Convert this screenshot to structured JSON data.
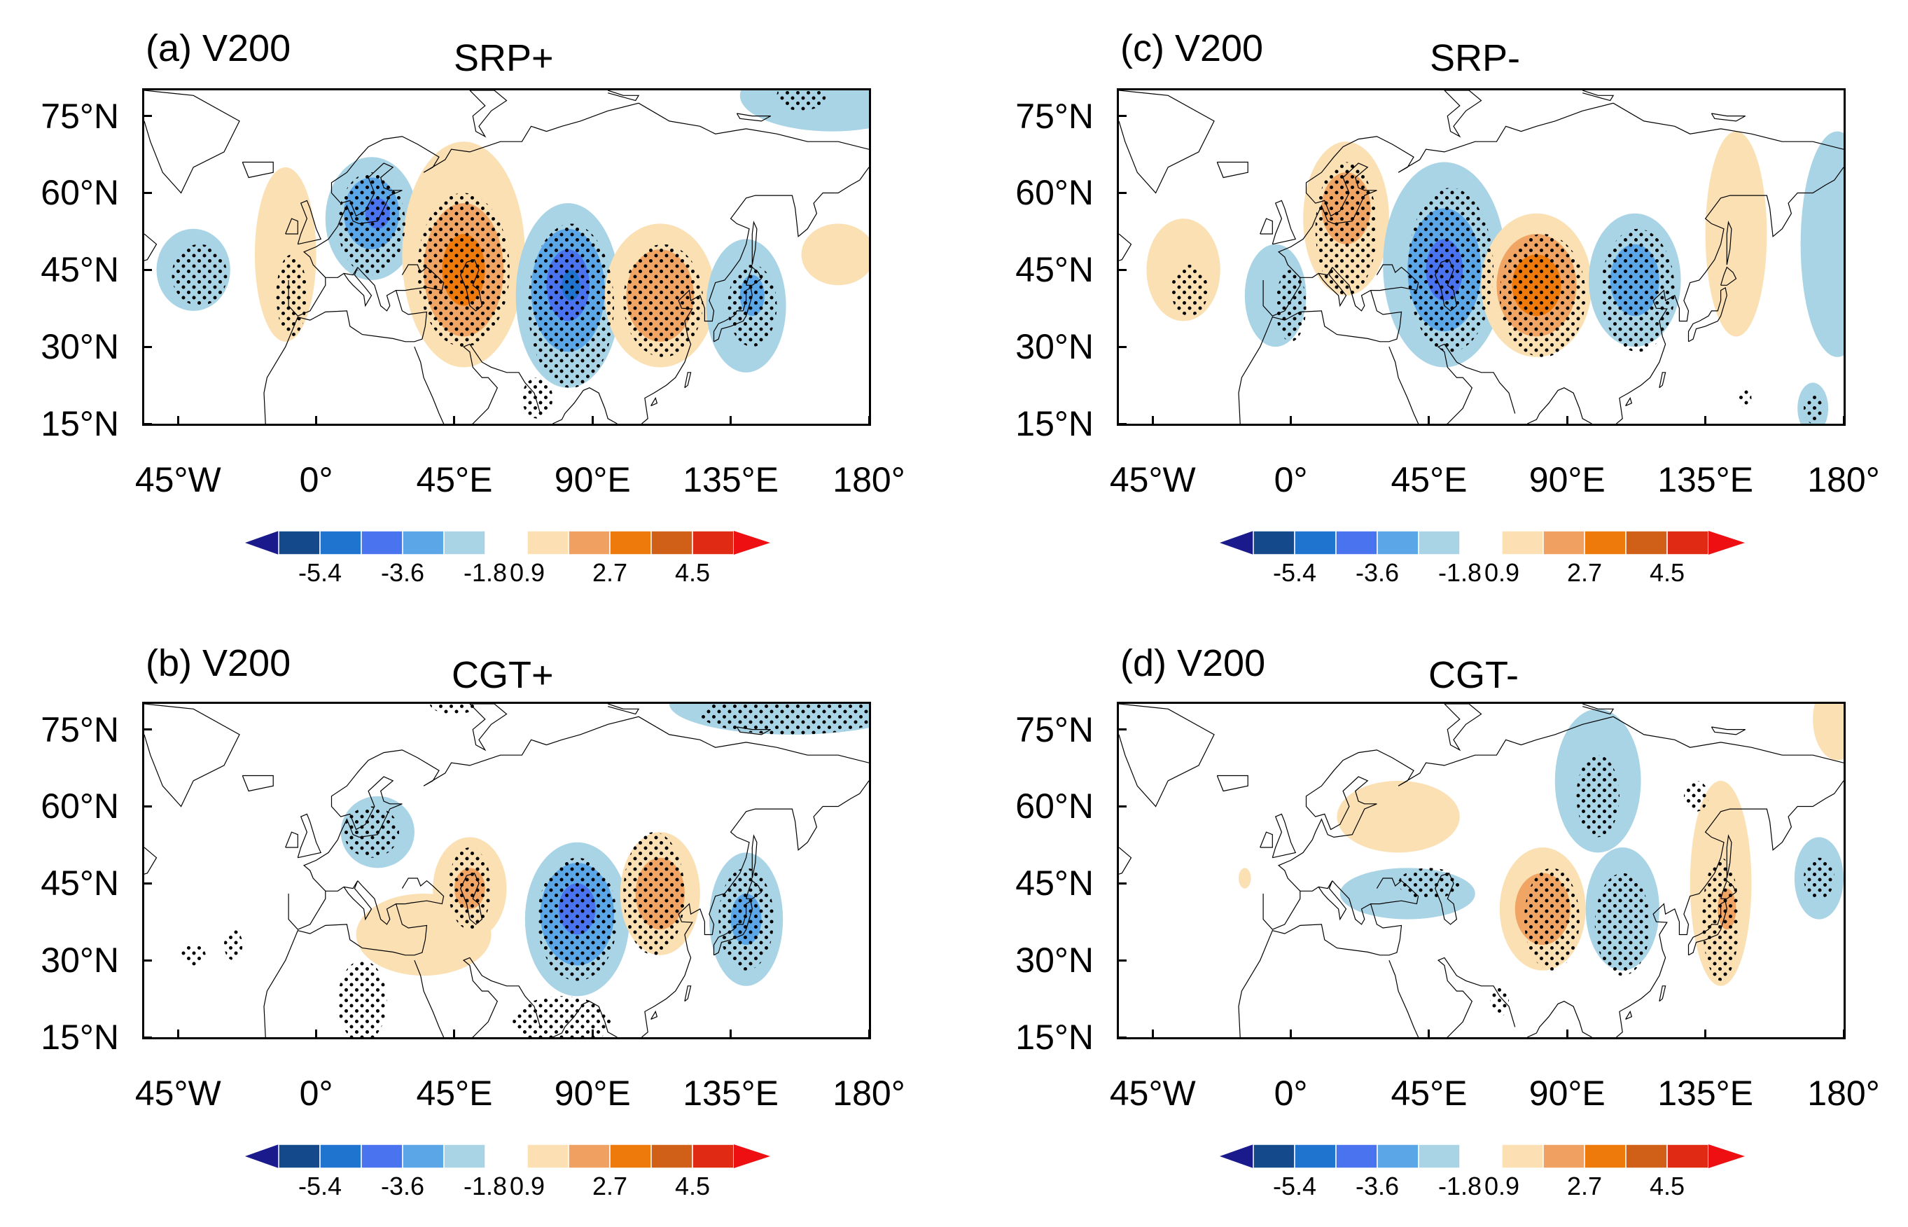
{
  "colors": {
    "neg": [
      "#1a1a8c",
      "#144a8c",
      "#1f74d0",
      "#4a73f0",
      "#5aa6e6",
      "#a9d4e6"
    ],
    "pos": [
      "#fce0b4",
      "#f0a060",
      "#ee7a0c",
      "#d06018",
      "#e02a14",
      "#ee0f12"
    ],
    "dots": "#000000",
    "coast": "#000000"
  },
  "axes": {
    "lat_ticks": [
      "75°N",
      "60°N",
      "45°N",
      "30°N",
      "15°N"
    ],
    "lon_ticks": [
      "45°W",
      "0°",
      "45°E",
      "90°E",
      "135°E",
      "180°"
    ]
  },
  "colorbar": {
    "labels": [
      "-5.4",
      "-3.6",
      "-1.8",
      "0.9",
      "2.7",
      "4.5"
    ]
  },
  "panels": [
    {
      "label": "(a) V200",
      "title": "SRP+",
      "blobs": [
        {
          "lon": -40,
          "lat": 45,
          "rx": 12,
          "ry": 8,
          "c": 1,
          "s": "n"
        },
        {
          "lon": -10,
          "lat": 48,
          "rx": 10,
          "ry": 17,
          "c": 1,
          "s": "p"
        },
        {
          "lon": 18,
          "lat": 55,
          "rx": 15,
          "ry": 12,
          "c": 1,
          "s": "n"
        },
        {
          "lon": 18,
          "lat": 56,
          "rx": 9,
          "ry": 7,
          "c": 2,
          "s": "n"
        },
        {
          "lon": 20,
          "lat": 56,
          "rx": 4,
          "ry": 3,
          "c": 3,
          "s": "n"
        },
        {
          "lon": 48,
          "lat": 48,
          "rx": 20,
          "ry": 22,
          "c": 1,
          "s": "p"
        },
        {
          "lon": 48,
          "lat": 45,
          "rx": 13,
          "ry": 13,
          "c": 2,
          "s": "p"
        },
        {
          "lon": 48,
          "lat": 45,
          "rx": 7,
          "ry": 7,
          "c": 3,
          "s": "p"
        },
        {
          "lon": 82,
          "lat": 40,
          "rx": 17,
          "ry": 18,
          "c": 1,
          "s": "n"
        },
        {
          "lon": 82,
          "lat": 41,
          "rx": 12,
          "ry": 12,
          "c": 2,
          "s": "n"
        },
        {
          "lon": 82,
          "lat": 42,
          "rx": 7,
          "ry": 7,
          "c": 3,
          "s": "n"
        },
        {
          "lon": 83,
          "lat": 42,
          "rx": 3,
          "ry": 3,
          "c": 4,
          "s": "n"
        },
        {
          "lon": 112,
          "lat": 40,
          "rx": 18,
          "ry": 14,
          "c": 1,
          "s": "p"
        },
        {
          "lon": 112,
          "lat": 40,
          "rx": 11,
          "ry": 9,
          "c": 2,
          "s": "p"
        },
        {
          "lon": 140,
          "lat": 38,
          "rx": 13,
          "ry": 13,
          "c": 1,
          "s": "n"
        },
        {
          "lon": 142,
          "lat": 40,
          "rx": 4,
          "ry": 4,
          "c": 2,
          "s": "n"
        },
        {
          "lon": 170,
          "lat": 48,
          "rx": 12,
          "ry": 6,
          "c": 1,
          "s": "p"
        },
        {
          "lon": 168,
          "lat": 79,
          "rx": 30,
          "ry": 7,
          "c": 1,
          "s": "n"
        }
      ],
      "stipple": [
        {
          "lon": -38,
          "lat": 44,
          "rx": 9,
          "ry": 6
        },
        {
          "lon": -8,
          "lat": 40,
          "rx": 5,
          "ry": 8
        },
        {
          "lon": 18,
          "lat": 54,
          "rx": 11,
          "ry": 10
        },
        {
          "lon": 48,
          "lat": 45,
          "rx": 15,
          "ry": 15
        },
        {
          "lon": 83,
          "lat": 38,
          "rx": 14,
          "ry": 16
        },
        {
          "lon": 113,
          "lat": 39,
          "rx": 13,
          "ry": 11
        },
        {
          "lon": 142,
          "lat": 38,
          "rx": 8,
          "ry": 8
        },
        {
          "lon": 72,
          "lat": 20,
          "rx": 5,
          "ry": 4
        },
        {
          "lon": 158,
          "lat": 79,
          "rx": 8,
          "ry": 3
        }
      ]
    },
    {
      "label": "(b) V200",
      "title": "CGT+",
      "blobs": [
        {
          "lon": 20,
          "lat": 55,
          "rx": 12,
          "ry": 7,
          "c": 1,
          "s": "n"
        },
        {
          "lon": 35,
          "lat": 35,
          "rx": 22,
          "ry": 8,
          "c": 1,
          "s": "p"
        },
        {
          "lon": 50,
          "lat": 44,
          "rx": 12,
          "ry": 10,
          "c": 1,
          "s": "p"
        },
        {
          "lon": 50,
          "lat": 44,
          "rx": 5,
          "ry": 4,
          "c": 2,
          "s": "p"
        },
        {
          "lon": 85,
          "lat": 38,
          "rx": 17,
          "ry": 15,
          "c": 1,
          "s": "n"
        },
        {
          "lon": 85,
          "lat": 39,
          "rx": 12,
          "ry": 10,
          "c": 2,
          "s": "n"
        },
        {
          "lon": 85,
          "lat": 40,
          "rx": 6,
          "ry": 5,
          "c": 3,
          "s": "n"
        },
        {
          "lon": 112,
          "lat": 43,
          "rx": 13,
          "ry": 12,
          "c": 1,
          "s": "p"
        },
        {
          "lon": 112,
          "lat": 43,
          "rx": 8,
          "ry": 7,
          "c": 2,
          "s": "p"
        },
        {
          "lon": 140,
          "lat": 38,
          "rx": 12,
          "ry": 13,
          "c": 1,
          "s": "n"
        },
        {
          "lon": 140,
          "lat": 38,
          "rx": 5,
          "ry": 5,
          "c": 2,
          "s": "n"
        },
        {
          "lon": 155,
          "lat": 80,
          "rx": 40,
          "ry": 6,
          "c": 1,
          "s": "n"
        }
      ],
      "stipple": [
        {
          "lon": 18,
          "lat": 55,
          "rx": 9,
          "ry": 5
        },
        {
          "lon": 50,
          "lat": 44,
          "rx": 7,
          "ry": 8
        },
        {
          "lon": 85,
          "lat": 38,
          "rx": 13,
          "ry": 12
        },
        {
          "lon": 110,
          "lat": 43,
          "rx": 10,
          "ry": 12
        },
        {
          "lon": 140,
          "lat": 38,
          "rx": 9,
          "ry": 10
        },
        {
          "lon": 15,
          "lat": 22,
          "rx": 8,
          "ry": 8
        },
        {
          "lon": 80,
          "lat": 18,
          "rx": 16,
          "ry": 5
        },
        {
          "lon": -40,
          "lat": 31,
          "rx": 4,
          "ry": 2
        },
        {
          "lon": -27,
          "lat": 33,
          "rx": 3,
          "ry": 3
        },
        {
          "lon": 155,
          "lat": 78,
          "rx": 30,
          "ry": 4
        },
        {
          "lon": 45,
          "lat": 80,
          "rx": 8,
          "ry": 2
        }
      ]
    },
    {
      "label": "(c) V200",
      "title": "SRP-",
      "blobs": [
        {
          "lon": -35,
          "lat": 45,
          "rx": 12,
          "ry": 10,
          "c": 1,
          "s": "p"
        },
        {
          "lon": -5,
          "lat": 40,
          "rx": 10,
          "ry": 10,
          "c": 1,
          "s": "n"
        },
        {
          "lon": 18,
          "lat": 55,
          "rx": 14,
          "ry": 15,
          "c": 1,
          "s": "p"
        },
        {
          "lon": 18,
          "lat": 57,
          "rx": 8,
          "ry": 7,
          "c": 2,
          "s": "p"
        },
        {
          "lon": 50,
          "lat": 46,
          "rx": 20,
          "ry": 20,
          "c": 1,
          "s": "n"
        },
        {
          "lon": 50,
          "lat": 45,
          "rx": 12,
          "ry": 12,
          "c": 2,
          "s": "n"
        },
        {
          "lon": 50,
          "lat": 45,
          "rx": 6,
          "ry": 6,
          "c": 3,
          "s": "n"
        },
        {
          "lon": 80,
          "lat": 42,
          "rx": 18,
          "ry": 14,
          "c": 1,
          "s": "p"
        },
        {
          "lon": 80,
          "lat": 42,
          "rx": 13,
          "ry": 10,
          "c": 2,
          "s": "p"
        },
        {
          "lon": 80,
          "lat": 42,
          "rx": 8,
          "ry": 6,
          "c": 3,
          "s": "p"
        },
        {
          "lon": 112,
          "lat": 43,
          "rx": 15,
          "ry": 13,
          "c": 1,
          "s": "n"
        },
        {
          "lon": 112,
          "lat": 43,
          "rx": 8,
          "ry": 7,
          "c": 2,
          "s": "n"
        },
        {
          "lon": 145,
          "lat": 52,
          "rx": 10,
          "ry": 20,
          "c": 1,
          "s": "p"
        },
        {
          "lon": 178,
          "lat": 50,
          "rx": 12,
          "ry": 22,
          "c": 1,
          "s": "n"
        },
        {
          "lon": 170,
          "lat": 18,
          "rx": 5,
          "ry": 5,
          "c": 1,
          "s": "n"
        }
      ],
      "stipple": [
        {
          "lon": -33,
          "lat": 41,
          "rx": 6,
          "ry": 5
        },
        {
          "lon": 0,
          "lat": 38,
          "rx": 5,
          "ry": 7
        },
        {
          "lon": 18,
          "lat": 53,
          "rx": 10,
          "ry": 13
        },
        {
          "lon": 52,
          "lat": 45,
          "rx": 14,
          "ry": 16
        },
        {
          "lon": 82,
          "lat": 40,
          "rx": 14,
          "ry": 12
        },
        {
          "lon": 113,
          "lat": 41,
          "rx": 12,
          "ry": 12
        },
        {
          "lon": 170,
          "lat": 18,
          "rx": 3,
          "ry": 3
        },
        {
          "lon": 148,
          "lat": 20,
          "rx": 2,
          "ry": 2
        }
      ]
    },
    {
      "label": "(d) V200",
      "title": "CGT-",
      "blobs": [
        {
          "lon": 35,
          "lat": 58,
          "rx": 20,
          "ry": 7,
          "c": 1,
          "s": "p"
        },
        {
          "lon": 38,
          "lat": 43,
          "rx": 22,
          "ry": 5,
          "c": 1,
          "s": "n"
        },
        {
          "lon": 100,
          "lat": 65,
          "rx": 14,
          "ry": 14,
          "c": 1,
          "s": "n"
        },
        {
          "lon": 108,
          "lat": 40,
          "rx": 12,
          "ry": 12,
          "c": 1,
          "s": "n"
        },
        {
          "lon": 82,
          "lat": 40,
          "rx": 14,
          "ry": 12,
          "c": 1,
          "s": "p"
        },
        {
          "lon": 82,
          "lat": 40,
          "rx": 9,
          "ry": 7,
          "c": 2,
          "s": "p"
        },
        {
          "lon": 140,
          "lat": 45,
          "rx": 10,
          "ry": 20,
          "c": 1,
          "s": "p"
        },
        {
          "lon": 142,
          "lat": 40,
          "rx": 3,
          "ry": 4,
          "c": 2,
          "s": "p"
        },
        {
          "lon": 172,
          "lat": 46,
          "rx": 8,
          "ry": 8,
          "c": 1,
          "s": "n"
        },
        {
          "lon": 178,
          "lat": 77,
          "rx": 8,
          "ry": 8,
          "c": 1,
          "s": "p"
        },
        {
          "lon": -15,
          "lat": 46,
          "rx": 2,
          "ry": 2,
          "c": 1,
          "s": "p"
        }
      ],
      "stipple": [
        {
          "lon": 45,
          "lat": 45,
          "rx": 10,
          "ry": 3
        },
        {
          "lon": 100,
          "lat": 62,
          "rx": 7,
          "ry": 8
        },
        {
          "lon": 108,
          "lat": 37,
          "rx": 9,
          "ry": 10
        },
        {
          "lon": 85,
          "lat": 38,
          "rx": 9,
          "ry": 10
        },
        {
          "lon": 140,
          "lat": 38,
          "rx": 6,
          "ry": 12
        },
        {
          "lon": 132,
          "lat": 62,
          "rx": 4,
          "ry": 3
        },
        {
          "lon": 172,
          "lat": 46,
          "rx": 5,
          "ry": 4
        },
        {
          "lon": 68,
          "lat": 22,
          "rx": 3,
          "ry": 3
        }
      ]
    }
  ]
}
